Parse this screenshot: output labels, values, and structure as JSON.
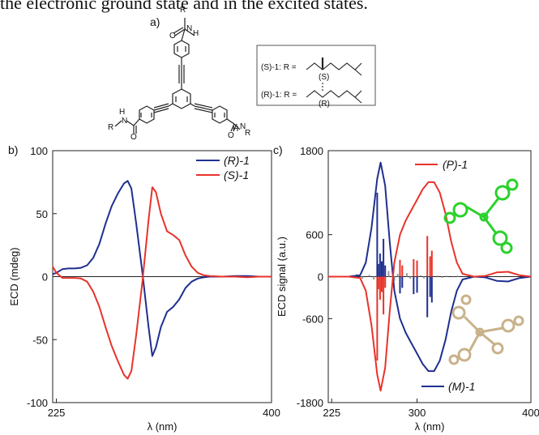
{
  "caption_line": "the electronic ground state and in the excited states.",
  "panel_labels": {
    "a": "a)",
    "b": "b)",
    "c": "c)"
  },
  "structure": {
    "atoms": {
      "O": "O",
      "N": "N",
      "H": "H",
      "R": "R"
    },
    "box_lines": [
      {
        "prefix": "(S)-1: R = ",
        "stereo": "(S)"
      },
      {
        "prefix": "(R)-1: R = ",
        "stereo": "(R)"
      }
    ]
  },
  "colors": {
    "blue": "#1f2f8f",
    "red": "#e8332a",
    "axis": "#222222",
    "molecule_green": "#2bd12b",
    "molecule_tan": "#c8b28a"
  },
  "chart_data": [
    {
      "panel": "b)",
      "type": "line",
      "xlabel": "λ (nm)",
      "ylabel": "ECD (mdeg)",
      "xlim": [
        222,
        400
      ],
      "ylim": [
        -100,
        100
      ],
      "xticks": [
        "225",
        "400"
      ],
      "yticks": [
        "100",
        "50",
        "0",
        "-50",
        "-100"
      ],
      "legend_position": "top-right",
      "series": [
        {
          "name": "(R)-1",
          "color": "#1f2f8f",
          "x": [
            222,
            225,
            230,
            235,
            240,
            245,
            250,
            255,
            260,
            265,
            270,
            275,
            280,
            283,
            286,
            290,
            295,
            300,
            303,
            306,
            310,
            315,
            320,
            325,
            330,
            335,
            340,
            345,
            350,
            360,
            370,
            380,
            390,
            400
          ],
          "y": [
            2,
            3,
            6,
            6.5,
            6.5,
            7,
            9,
            15,
            26,
            42,
            56,
            66,
            74,
            76,
            70,
            42,
            3,
            -40,
            -63,
            -56,
            -40,
            -28,
            -24,
            -18,
            -9,
            -4,
            -1.5,
            -0.5,
            0,
            0,
            0.5,
            0.5,
            0,
            0
          ]
        },
        {
          "name": "(S)-1",
          "color": "#e8332a",
          "x": [
            222,
            225,
            230,
            235,
            240,
            245,
            250,
            255,
            260,
            265,
            270,
            275,
            280,
            283,
            286,
            290,
            295,
            300,
            303,
            306,
            310,
            315,
            320,
            325,
            330,
            335,
            340,
            345,
            350,
            360,
            370,
            380,
            390,
            400
          ],
          "y": [
            8,
            3,
            -1,
            -1,
            -1,
            -1.5,
            -4,
            -12,
            -24,
            -40,
            -55,
            -67,
            -78,
            -81,
            -75,
            -46,
            -4,
            45,
            71,
            67,
            50,
            36,
            33,
            29,
            17,
            8,
            3,
            1,
            0.5,
            0,
            0,
            -0.5,
            0,
            0
          ]
        }
      ]
    },
    {
      "panel": "c)",
      "type": "line",
      "xlabel": "λ (nm)",
      "ylabel": "ECD signal (a.u.)",
      "xlim": [
        222,
        400
      ],
      "ylim": [
        -1800,
        1800
      ],
      "xticks": [
        "225",
        "300",
        "400"
      ],
      "yticks": [
        "1800",
        "600",
        "0",
        "-600",
        "-1800"
      ],
      "legend": [
        {
          "name": "(P)-1",
          "position": "top"
        },
        {
          "name": "(M)-1",
          "position": "bottom"
        }
      ],
      "series": [
        {
          "name": "(M)-1",
          "color": "#1f2f8f",
          "x": [
            222,
            240,
            250,
            255,
            260,
            265,
            268,
            272,
            276,
            280,
            285,
            290,
            295,
            300,
            305,
            310,
            315,
            320,
            325,
            330,
            335,
            340,
            350,
            360,
            370,
            380,
            390,
            400
          ],
          "y": [
            0,
            0,
            20,
            200,
            700,
            1400,
            1630,
            1300,
            500,
            -200,
            -600,
            -800,
            -950,
            -1100,
            -1250,
            -1350,
            -1350,
            -1200,
            -900,
            -500,
            -200,
            -40,
            0,
            -10,
            -60,
            -70,
            -20,
            0
          ]
        },
        {
          "name": "(P)-1",
          "color": "#e8332a",
          "x": [
            222,
            240,
            250,
            255,
            260,
            265,
            268,
            272,
            276,
            280,
            285,
            290,
            295,
            300,
            305,
            310,
            315,
            320,
            325,
            330,
            335,
            340,
            350,
            360,
            370,
            380,
            390,
            400
          ],
          "y": [
            0,
            0,
            -20,
            -200,
            -700,
            -1400,
            -1630,
            -1300,
            -500,
            200,
            600,
            800,
            950,
            1100,
            1250,
            1350,
            1350,
            1200,
            900,
            500,
            200,
            40,
            0,
            10,
            60,
            70,
            20,
            0
          ]
        }
      ],
      "stick_transitions": {
        "blue": {
          "x": [
            265,
            266,
            267.5,
            269,
            270.5,
            272,
            285,
            287,
            297,
            300,
            309,
            311.5,
            313
          ],
          "y": [
            1200,
            180,
            330,
            220,
            540,
            160,
            -240,
            -160,
            -250,
            -230,
            -580,
            -290,
            -370
          ]
        },
        "red": {
          "x": [
            265,
            266,
            267.5,
            269,
            270.5,
            272,
            285,
            287,
            297,
            300,
            309,
            311.5,
            313
          ],
          "y": [
            -1200,
            -180,
            -330,
            -220,
            -540,
            -160,
            240,
            160,
            250,
            230,
            580,
            290,
            370
          ]
        },
        "grey": {
          "x": [
            247,
            252,
            258,
            262,
            275,
            280,
            283,
            291,
            294,
            303,
            306,
            318,
            322,
            326,
            332,
            336
          ],
          "y": [
            35,
            -30,
            25,
            -40,
            80,
            -60,
            40,
            50,
            -30,
            20,
            -25,
            15,
            -15,
            10,
            -10,
            12
          ]
        }
      }
    }
  ]
}
